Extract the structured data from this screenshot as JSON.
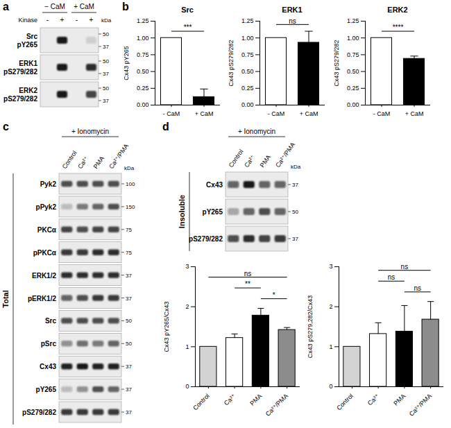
{
  "figure": {
    "panels": {
      "a": {
        "label": "a",
        "groups": [
          "− CaM",
          "+ CaM"
        ],
        "row_header": "Kinase",
        "lanes": [
          "-",
          "+",
          "-",
          "+"
        ],
        "unit": "kDa",
        "rows": [
          {
            "name": [
              "Src",
              "pY265"
            ],
            "markers": [
              50,
              37
            ],
            "intensity": [
              0,
              0.95,
              0,
              0.12
            ]
          },
          {
            "name": [
              "ERK1",
              "pS279/282"
            ],
            "markers": [
              50,
              37
            ],
            "intensity": [
              0,
              0.95,
              0,
              0.85
            ]
          },
          {
            "name": [
              "ERK2",
              "pS279/282"
            ],
            "markers": [
              50,
              37
            ],
            "intensity": [
              0,
              0.95,
              0,
              0.75
            ]
          }
        ]
      },
      "b": {
        "label": "b"
      },
      "c": {
        "label": "c",
        "treatment": "+ Ionomycin",
        "section": "Total",
        "lanes": [
          "Control",
          "Ca²⁺",
          "PMA",
          "Ca²⁺/PMA"
        ],
        "unit": "kDa",
        "rows": [
          {
            "name": "Pyk2",
            "markers": [
              100
            ],
            "intensity": [
              0.7,
              0.7,
              0.7,
              0.7
            ]
          },
          {
            "name": "pPyk2",
            "markers": [
              150
            ],
            "intensity": [
              0.2,
              0.5,
              0.6,
              0.7
            ]
          },
          {
            "name": "PKCα",
            "markers": [
              75
            ],
            "intensity": [
              0.75,
              0.7,
              0.75,
              0.75
            ]
          },
          {
            "name": "pPKCα",
            "markers": [
              75
            ],
            "intensity": [
              0.8,
              0.8,
              0.85,
              0.85
            ]
          },
          {
            "name": "ERK1/2",
            "markers": [
              37
            ],
            "intensity": [
              0.85,
              0.85,
              0.85,
              0.85
            ]
          },
          {
            "name": "pERK1/2",
            "markers": [
              37
            ],
            "intensity": [
              0.6,
              0.7,
              0.8,
              0.8
            ]
          },
          {
            "name": "Src",
            "markers": [
              50
            ],
            "intensity": [
              0.7,
              0.7,
              0.7,
              0.7
            ]
          },
          {
            "name": "pSrc",
            "markers": [
              50
            ],
            "intensity": [
              0.4,
              0.55,
              0.5,
              0.6
            ]
          },
          {
            "name": "Cx43",
            "markers": [
              37
            ],
            "intensity": [
              0.9,
              0.95,
              0.9,
              0.9
            ]
          },
          {
            "name": "pY265",
            "markers": [
              37
            ],
            "intensity": [
              0.2,
              0.4,
              0.7,
              0.6
            ]
          },
          {
            "name": "pS279/282",
            "markers": [
              37
            ],
            "intensity": [
              0.8,
              0.8,
              0.8,
              0.8
            ]
          }
        ]
      },
      "d": {
        "label": "d",
        "treatment": "+ Ionomycin",
        "section": "Insoluble",
        "lanes": [
          "Control",
          "Ca²⁺",
          "PMA",
          "Ca²⁺/PMA"
        ],
        "unit": "kDa",
        "rows": [
          {
            "name": "Cx43",
            "markers": [
              37
            ],
            "intensity": [
              0.6,
              0.95,
              0.6,
              0.6
            ]
          },
          {
            "name": "pY265",
            "markers": [
              50
            ],
            "intensity": [
              0.3,
              0.6,
              0.7,
              0.6
            ]
          },
          {
            "name": "pS279/282",
            "markers": [
              37
            ],
            "intensity": [
              0.7,
              0.85,
              0.75,
              0.8
            ]
          }
        ]
      }
    }
  },
  "chart_data": [
    {
      "type": "bar",
      "title": "Src",
      "categories": [
        "- CaM",
        "+ CaM"
      ],
      "values": [
        1.0,
        0.12
      ],
      "errors": [
        null,
        0.12
      ],
      "colors": [
        "#ffffff",
        "#000000"
      ],
      "ylabel": "Cx43 pY265",
      "ylim": [
        0,
        1.25
      ],
      "yticks": [
        {
          "value": 0,
          "label": "0.00"
        },
        {
          "value": 0.25,
          "label": "0.25"
        },
        {
          "value": 0.5,
          "label": "0.50"
        },
        {
          "value": 0.75,
          "label": "0.75"
        },
        {
          "value": 1,
          "label": "1.00"
        },
        {
          "value": 1.25,
          "label": "1.25"
        }
      ],
      "comparisons": [
        {
          "from": "- CaM",
          "to": "+ CaM",
          "label": "***"
        }
      ]
    },
    {
      "type": "bar",
      "title": "ERK1",
      "categories": [
        "- CaM",
        "+ CaM"
      ],
      "values": [
        1.0,
        0.93
      ],
      "errors": [
        null,
        0.17
      ],
      "colors": [
        "#ffffff",
        "#000000"
      ],
      "ylabel": "Cx43 pS279/282",
      "ylim": [
        0,
        1.25
      ],
      "yticks": [
        {
          "value": 0,
          "label": "0.00"
        },
        {
          "value": 0.25,
          "label": "0.25"
        },
        {
          "value": 0.5,
          "label": "0.50"
        },
        {
          "value": 0.75,
          "label": "0.75"
        },
        {
          "value": 1,
          "label": "1.00"
        },
        {
          "value": 1.25,
          "label": "1.25"
        }
      ],
      "comparisons": [
        {
          "from": "- CaM",
          "to": "+ CaM",
          "label": "ns"
        }
      ]
    },
    {
      "type": "bar",
      "title": "ERK2",
      "categories": [
        "- CaM",
        "+ CaM"
      ],
      "values": [
        1.0,
        0.69
      ],
      "errors": [
        null,
        0.04
      ],
      "colors": [
        "#ffffff",
        "#000000"
      ],
      "ylabel": "Cx43 pS279/282",
      "ylim": [
        0,
        1.25
      ],
      "yticks": [
        {
          "value": 0,
          "label": "0.00"
        },
        {
          "value": 0.25,
          "label": "0.25"
        },
        {
          "value": 0.5,
          "label": "0.50"
        },
        {
          "value": 0.75,
          "label": "0.75"
        },
        {
          "value": 1,
          "label": "1.00"
        },
        {
          "value": 1.25,
          "label": "1.25"
        }
      ],
      "comparisons": [
        {
          "from": "- CaM",
          "to": "+ CaM",
          "label": "****"
        }
      ]
    },
    {
      "type": "bar",
      "categories": [
        "Control",
        "Ca²⁺",
        "PMA",
        "Ca²⁺/PMA"
      ],
      "values": [
        1.0,
        1.22,
        1.78,
        1.42
      ],
      "errors": [
        null,
        0.1,
        0.18,
        0.06
      ],
      "colors": [
        "#d3d3d3",
        "#ffffff",
        "#000000",
        "#8c8c8c"
      ],
      "ylabel": "Cx43 pY265/Cx43",
      "ylim": [
        0,
        3
      ],
      "yticks": [
        0,
        1,
        2,
        3
      ],
      "comparisons": [
        {
          "from": "PMA",
          "to": "Ca²⁺/PMA",
          "label": "*"
        },
        {
          "from": "Ca²⁺",
          "to": "PMA",
          "label": "**"
        },
        {
          "from": "Control",
          "to": "Ca²⁺/PMA",
          "label": "ns"
        }
      ]
    },
    {
      "type": "bar",
      "categories": [
        "Control",
        "Ca²⁺",
        "PMA",
        "Ca²⁺/PMA"
      ],
      "values": [
        1.0,
        1.32,
        1.38,
        1.68
      ],
      "errors": [
        null,
        0.28,
        0.65,
        0.45
      ],
      "colors": [
        "#d3d3d3",
        "#ffffff",
        "#000000",
        "#8c8c8c"
      ],
      "ylabel": "Cx43 pS279,282/Cx43",
      "ylim": [
        0,
        3
      ],
      "yticks": [
        0,
        1,
        2,
        3
      ],
      "comparisons": [
        {
          "from": "PMA",
          "to": "Ca²⁺/PMA",
          "label": "ns"
        },
        {
          "from": "Ca²⁺",
          "to": "PMA",
          "label": "ns"
        },
        {
          "from": "Ca²⁺",
          "to": "Ca²⁺/PMA",
          "label": "ns"
        }
      ]
    }
  ]
}
